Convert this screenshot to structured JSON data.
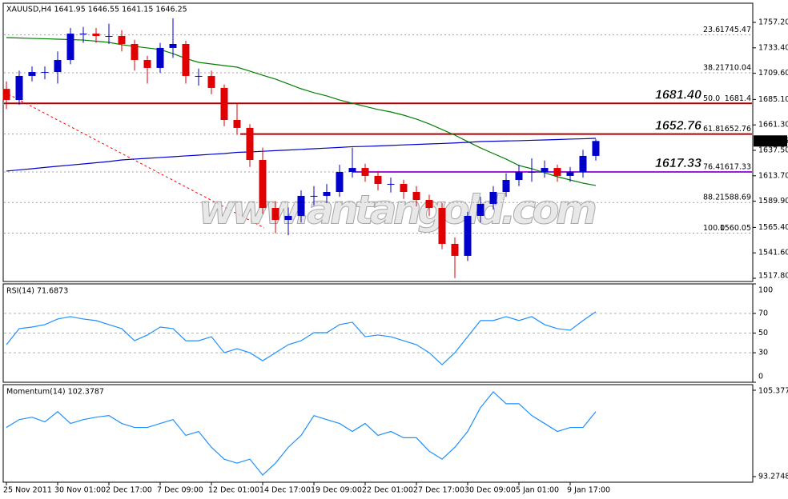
{
  "header": "XAUUSD,H4  1641.95 1646.55 1641.15 1646.25",
  "watermark": "www.antangold.com",
  "chart_data": [
    {
      "type": "candlestick",
      "categories": [
        "25 Nov 2011",
        null,
        null,
        null,
        "30 Nov 01:00",
        null,
        null,
        null,
        "2 Dec 17:00",
        null,
        null,
        null,
        "7 Dec 09:00",
        null,
        null,
        null,
        "12 Dec 01:00",
        null,
        null,
        null,
        "14 Dec 17:00",
        null,
        null,
        null,
        "19 Dec 09:00",
        null,
        null,
        null,
        "22 Dec 01:00",
        null,
        null,
        null,
        "27 Dec 17:00",
        null,
        null,
        null,
        "30 Dec 09:00",
        null,
        null,
        null,
        "5 Jan 01:00",
        null,
        null,
        null,
        "9 Jan 17:00",
        null,
        null
      ],
      "open": [
        1695.0,
        1684.6,
        1707.1,
        1710.8,
        1710.8,
        1722.0,
        1746.7,
        1746.7,
        1744.5,
        1744.5,
        1737.0,
        1722.0,
        1714.6,
        1733.3,
        1737.0,
        1707.1,
        1707.1,
        1695.9,
        1665.9,
        1658.5,
        1628.5,
        1583.6,
        1572.4,
        1576.2,
        1594.9,
        1594.9,
        1598.6,
        1617.3,
        1621.0,
        1613.6,
        1606.1,
        1606.1,
        1598.6,
        1591.1,
        1583.6,
        1550.0,
        1538.8,
        1576.2,
        1587.4,
        1598.6,
        1609.8,
        1617.3,
        1617.3,
        1621.0,
        1613.6,
        1617.3,
        1632.3
      ],
      "high": [
        1702,
        1712,
        1716,
        1716,
        1730,
        1752,
        1753,
        1752,
        1756,
        1750,
        1741,
        1726,
        1738,
        1761,
        1740,
        1714,
        1712,
        1699,
        1682,
        1662,
        1640,
        1590,
        1584,
        1600,
        1604,
        1606,
        1624,
        1640,
        1625,
        1618,
        1612,
        1610,
        1604,
        1596,
        1588,
        1556,
        1580,
        1594,
        1604,
        1616,
        1624,
        1630,
        1628,
        1624,
        1622,
        1638,
        1648
      ],
      "low": [
        1676,
        1680,
        1702,
        1704,
        1700,
        1718,
        1738,
        1738,
        1737,
        1730,
        1712,
        1700,
        1710,
        1724,
        1700,
        1698,
        1690,
        1660,
        1652,
        1622,
        1578,
        1560,
        1558,
        1570,
        1586,
        1588,
        1594,
        1612,
        1608,
        1600,
        1598,
        1592,
        1585,
        1576,
        1545,
        1518,
        1534,
        1570,
        1582,
        1594,
        1604,
        1608,
        1612,
        1608,
        1608,
        1612,
        1628
      ],
      "close": [
        1684.6,
        1707.1,
        1710.8,
        1710.8,
        1722.0,
        1746.7,
        1746.7,
        1744.5,
        1744.5,
        1737.0,
        1722.0,
        1714.6,
        1733.3,
        1737.0,
        1707.1,
        1707.1,
        1695.9,
        1665.9,
        1658.5,
        1628.5,
        1583.6,
        1572.4,
        1576.2,
        1594.9,
        1594.9,
        1598.6,
        1617.3,
        1621.0,
        1613.6,
        1606.1,
        1606.1,
        1598.6,
        1591.1,
        1583.6,
        1550.0,
        1538.8,
        1576.2,
        1587.4,
        1598.6,
        1609.8,
        1617.3,
        1617.3,
        1621.0,
        1613.6,
        1617.3,
        1632.3,
        1646.25
      ],
      "up_color": "#0000cd",
      "down_color": "#e00000",
      "lines": [
        {
          "color": "#008000",
          "values": [
            1743.0,
            1742.6,
            1742.2,
            1741.9,
            1741.5,
            1741.1,
            1740.7,
            1739.6,
            1738.5,
            1736.3,
            1734.8,
            1733.3,
            1731.8,
            1728.0,
            1723.5,
            1719.8,
            1718.3,
            1716.8,
            1715.3,
            1711.6,
            1707.8,
            1704.1,
            1699.6,
            1695.1,
            1691.4,
            1688.4,
            1684.6,
            1681.6,
            1678.6,
            1675.7,
            1673.4,
            1670.4,
            1666.7,
            1662.2,
            1657.0,
            1651.7,
            1645.7,
            1639.8,
            1634.5,
            1629.3,
            1623.3,
            1620.3,
            1616.5,
            1612.8,
            1609.8,
            1606.8,
            1604.6
          ]
        },
        {
          "color": "#0000cc",
          "values": [
            1618.1,
            1619.2,
            1620.3,
            1621.5,
            1622.6,
            1623.7,
            1624.8,
            1625.9,
            1627.0,
            1628.5,
            1629.3,
            1630.0,
            1630.8,
            1631.5,
            1632.3,
            1633.0,
            1633.8,
            1634.5,
            1635.6,
            1636.0,
            1636.6,
            1637.2,
            1637.8,
            1638.4,
            1639.0,
            1639.6,
            1640.2,
            1640.9,
            1641.2,
            1641.6,
            1642.1,
            1642.6,
            1643.0,
            1643.5,
            1643.9,
            1644.4,
            1645.0,
            1645.7,
            1646.0,
            1646.3,
            1646.5,
            1646.9,
            1647.2,
            1647.6,
            1648.0,
            1648.3,
            1648.7
          ]
        }
      ],
      "levels": [
        {
          "value": 1681.4,
          "label": "1681.40",
          "color": "#b00000"
        },
        {
          "value": 1652.76,
          "label": "1652.76",
          "color": "#b00000"
        },
        {
          "value": 1617.33,
          "label": "1617.33",
          "color": "#9a1fd6"
        }
      ],
      "fib": [
        {
          "ratio": "23.6",
          "price": 1745.47
        },
        {
          "ratio": "38.2",
          "price": 1710.04
        },
        {
          "ratio": "50.0",
          "price": 1681.4
        },
        {
          "ratio": "61.8",
          "price": 1652.76
        },
        {
          "ratio": "76.4",
          "price": 1617.33
        },
        {
          "ratio": "88.2",
          "price": 1588.69
        },
        {
          "ratio": "100.0",
          "price": 1560.05
        }
      ],
      "current_price": 1646.25,
      "ylim": [
        1514.8,
        1775.15
      ],
      "yticks": [
        {
          "value": 1757.2,
          "label": "1757.20"
        },
        {
          "value": 1733.4,
          "label": "1733.40"
        },
        {
          "value": 1709.6,
          "label": "1709.60"
        },
        {
          "value": 1685.1,
          "label": "1685.10"
        },
        {
          "value": 1661.3,
          "label": "1661.30"
        },
        {
          "value": 1637.5,
          "label": "1637.50"
        },
        {
          "value": 1613.7,
          "label": "1613.70"
        },
        {
          "value": 1589.9,
          "label": "1589.90"
        },
        {
          "value": 1565.4,
          "label": "1565.40"
        },
        {
          "value": 1541.6,
          "label": "1541.60"
        },
        {
          "value": 1517.8,
          "label": "1517.80"
        }
      ]
    },
    {
      "type": "line",
      "title": "RSI(14) 71.6873",
      "color": "#1e90ff",
      "values": [
        38.2,
        54.5,
        56.1,
        58.6,
        64.3,
        66.7,
        64.3,
        62.7,
        58.6,
        54.5,
        42.2,
        48.0,
        56.1,
        54.5,
        42.2,
        42.2,
        46.3,
        30.0,
        34.1,
        30.0,
        21.8,
        30.0,
        38.2,
        42.2,
        50.4,
        50.4,
        58.6,
        61.0,
        46.3,
        48.0,
        46.3,
        42.2,
        38.2,
        30.0,
        17.8,
        30.0,
        46.3,
        62.7,
        62.7,
        66.7,
        62.7,
        66.7,
        58.6,
        54.5,
        52.9,
        62.7,
        71.69
      ],
      "ylim": [
        0,
        100
      ],
      "yticks": [
        100,
        70,
        50,
        30,
        0
      ],
      "grid": [
        70,
        50,
        30
      ]
    },
    {
      "type": "line",
      "title": "Momentum(14) 102.3787",
      "color": "#1e90ff",
      "values": [
        100.16,
        101.27,
        101.6,
        100.94,
        102.38,
        100.72,
        101.27,
        101.6,
        101.83,
        100.72,
        100.16,
        100.16,
        100.72,
        101.27,
        99.05,
        99.6,
        97.38,
        95.72,
        95.16,
        95.72,
        93.5,
        95.16,
        97.38,
        99.05,
        101.83,
        101.27,
        100.72,
        99.6,
        100.72,
        99.05,
        99.6,
        98.72,
        98.72,
        96.83,
        95.72,
        97.38,
        99.6,
        102.94,
        105.16,
        103.49,
        103.49,
        101.83,
        100.72,
        99.6,
        100.16,
        100.16,
        102.38
      ],
      "ylim": [
        93.2748,
        105.3776
      ],
      "yticks": [
        105.3776,
        93.2748
      ]
    }
  ]
}
